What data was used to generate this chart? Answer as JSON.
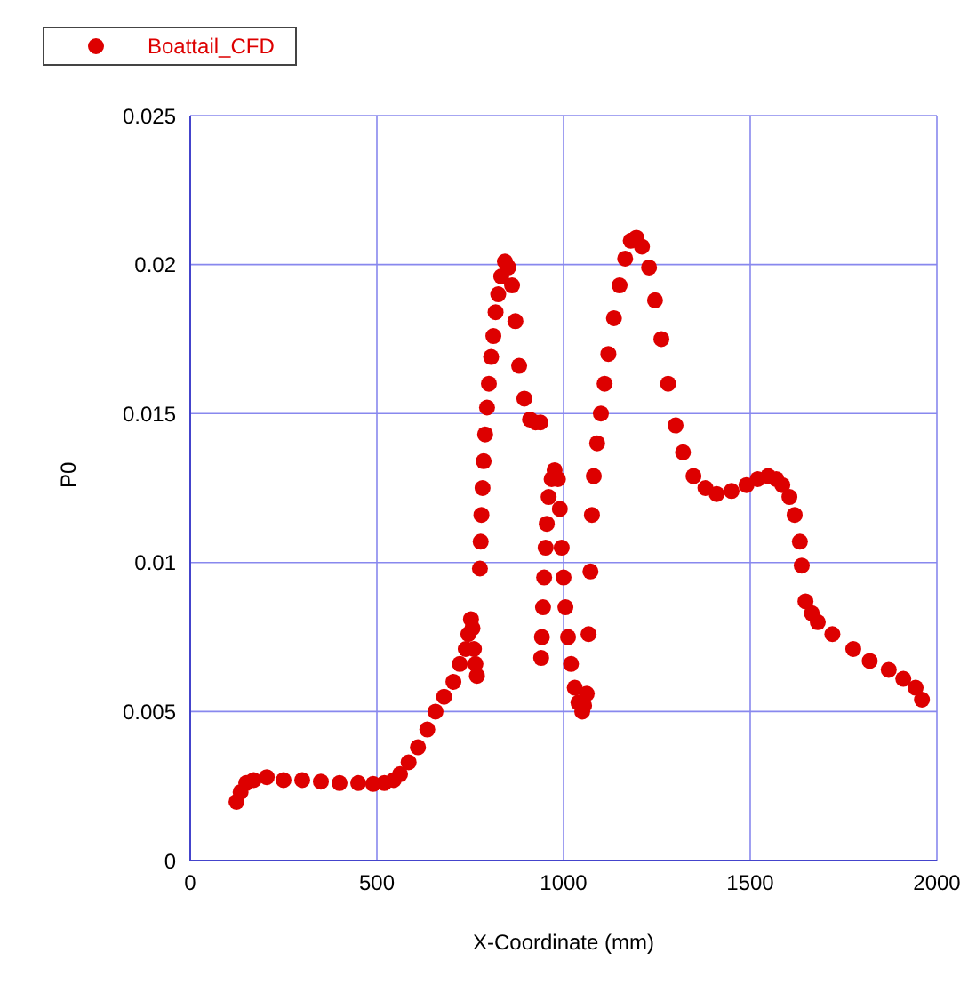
{
  "chart_data": {
    "type": "scatter",
    "xlabel": "X-Coordinate (mm)",
    "ylabel": "P0",
    "xlim": [
      0,
      2000
    ],
    "xticks": [
      0,
      500,
      1000,
      1500,
      2000
    ],
    "ylim": [
      0,
      0.025
    ],
    "yticks": [
      0,
      0.005,
      0.01,
      0.015,
      0.02,
      0.025
    ],
    "grid": true,
    "legend": "top left",
    "marker": "circle",
    "x": [
      124,
      135,
      150,
      170,
      205,
      250,
      300,
      350,
      400,
      450,
      490,
      520,
      545,
      562,
      585,
      610,
      635,
      657,
      680,
      705,
      722,
      738,
      745,
      752,
      756,
      760,
      764,
      768,
      776,
      778,
      780,
      783,
      786,
      790,
      795,
      800,
      806,
      812,
      818,
      825,
      833,
      843,
      852,
      862,
      871,
      881,
      895,
      910,
      925,
      938,
      940,
      942,
      945,
      948,
      952,
      955,
      960,
      968,
      976,
      985,
      990,
      995,
      1000,
      1005,
      1012,
      1020,
      1030,
      1040,
      1050,
      1055,
      1062,
      1067,
      1072,
      1076,
      1081,
      1090,
      1100,
      1110,
      1120,
      1135,
      1150,
      1165,
      1180,
      1195,
      1210,
      1229,
      1245,
      1262,
      1280,
      1300,
      1320,
      1348,
      1380,
      1410,
      1450,
      1490,
      1520,
      1548,
      1570,
      1586,
      1605,
      1619,
      1633,
      1638,
      1648,
      1665,
      1681,
      1720,
      1776,
      1820,
      1871,
      1910,
      1943,
      1960
    ],
    "series": [
      {
        "name": "Boattail_CFD",
        "color": "#dd0000",
        "values": [
          0.00197,
          0.0023,
          0.0026,
          0.0027,
          0.0028,
          0.0027,
          0.0027,
          0.00265,
          0.0026,
          0.0026,
          0.00257,
          0.0026,
          0.0027,
          0.0029,
          0.0033,
          0.0038,
          0.0044,
          0.005,
          0.0055,
          0.006,
          0.0066,
          0.0071,
          0.0076,
          0.0081,
          0.0078,
          0.0071,
          0.0066,
          0.0062,
          0.0098,
          0.0107,
          0.0116,
          0.0125,
          0.0134,
          0.0143,
          0.0152,
          0.016,
          0.0169,
          0.0176,
          0.0184,
          0.019,
          0.0196,
          0.0201,
          0.0199,
          0.0193,
          0.0181,
          0.0166,
          0.0155,
          0.0148,
          0.0147,
          0.0147,
          0.0068,
          0.0075,
          0.0085,
          0.0095,
          0.0105,
          0.0113,
          0.0122,
          0.0128,
          0.0131,
          0.0128,
          0.0118,
          0.0105,
          0.0095,
          0.0085,
          0.0075,
          0.0066,
          0.0058,
          0.0053,
          0.005,
          0.0052,
          0.0056,
          0.0076,
          0.0097,
          0.0116,
          0.0129,
          0.014,
          0.015,
          0.016,
          0.017,
          0.0182,
          0.0193,
          0.0202,
          0.0208,
          0.0209,
          0.0206,
          0.0199,
          0.0188,
          0.0175,
          0.016,
          0.0146,
          0.0137,
          0.0129,
          0.0125,
          0.0123,
          0.0124,
          0.0126,
          0.0128,
          0.0129,
          0.0128,
          0.0126,
          0.0122,
          0.0116,
          0.0107,
          0.0099,
          0.0087,
          0.0083,
          0.008,
          0.0076,
          0.0071,
          0.0067,
          0.0064,
          0.0061,
          0.0058,
          0.0054
        ]
      }
    ]
  }
}
